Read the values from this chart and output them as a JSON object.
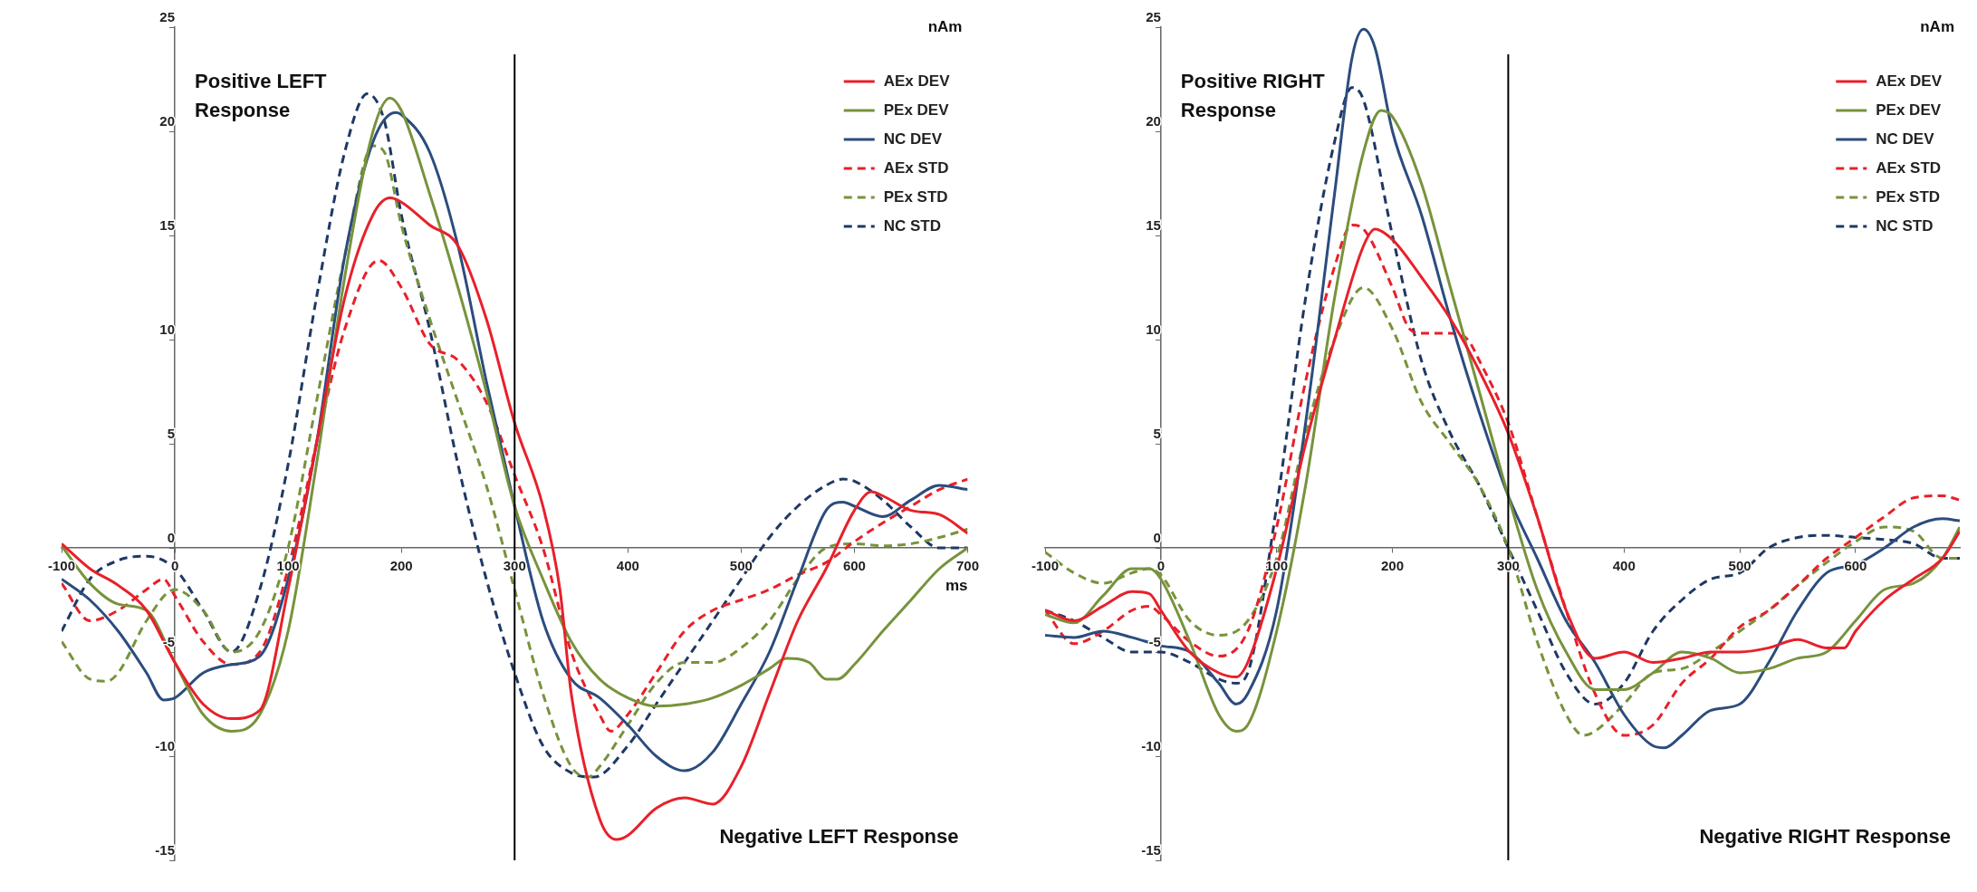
{
  "chart_data": [
    {
      "type": "line",
      "ylabel": "nAm",
      "xlabel": "ms",
      "xlim": [
        -100,
        700
      ],
      "xticks": [
        -100,
        0,
        100,
        200,
        300,
        400,
        500,
        600,
        700
      ],
      "ylim": [
        -15,
        25
      ],
      "yticks": [
        -15,
        -10,
        -5,
        0,
        5,
        10,
        15,
        20,
        25
      ],
      "grid": false,
      "legend": "top right",
      "marker": "none",
      "ref_lines": [
        {
          "axis": "x",
          "value": 300,
          "color": "#000000"
        }
      ],
      "annotations": [
        "Positive LEFT Response",
        "Negative LEFT Response"
      ],
      "series": [
        {
          "name": "AEx DEV",
          "color": "#e8202a",
          "line_style": "solid",
          "x": [
            -100,
            -75,
            -50,
            -25,
            0,
            25,
            50,
            75,
            100,
            125,
            150,
            175,
            190,
            200,
            225,
            250,
            275,
            300,
            325,
            340,
            350,
            375,
            390,
            400,
            425,
            450,
            475,
            500,
            525,
            550,
            575,
            600,
            615,
            625,
            650,
            675,
            700
          ],
          "values": [
            0.2,
            -1,
            -1.8,
            -3,
            -5.5,
            -7.5,
            -8.2,
            -7.8,
            -2,
            5,
            12,
            16,
            16.8,
            16.6,
            15.5,
            14.5,
            11,
            6,
            2,
            -2,
            -7,
            -13,
            -14,
            -13.8,
            -12.5,
            -12,
            -12.3,
            -10.5,
            -7,
            -3.5,
            -1,
            1.8,
            2.7,
            2.5,
            1.8,
            1.6,
            0.7
          ]
        },
        {
          "name": "PEx DEV",
          "color": "#77933c",
          "line_style": "solid",
          "x": [
            -100,
            -75,
            -50,
            -25,
            0,
            25,
            50,
            75,
            100,
            125,
            150,
            175,
            190,
            200,
            225,
            250,
            275,
            300,
            325,
            350,
            375,
            400,
            425,
            450,
            475,
            500,
            525,
            540,
            560,
            575,
            585,
            600,
            625,
            650,
            675,
            700
          ],
          "values": [
            0.1,
            -1.7,
            -2.7,
            -3,
            -5.5,
            -8,
            -8.8,
            -8,
            -4,
            4,
            13,
            20,
            21.6,
            21,
            17,
            12.5,
            7.5,
            2,
            -1.5,
            -4.5,
            -6.3,
            -7.2,
            -7.6,
            -7.5,
            -7.2,
            -6.6,
            -5.8,
            -5.3,
            -5.5,
            -6.3,
            -6.3,
            -5.6,
            -4,
            -2.5,
            -1,
            0
          ]
        },
        {
          "name": "NC DEV",
          "color": "#2b4c7e",
          "line_style": "solid",
          "x": [
            -100,
            -75,
            -50,
            -25,
            -10,
            0,
            25,
            50,
            75,
            100,
            125,
            150,
            175,
            195,
            200,
            225,
            250,
            275,
            300,
            325,
            350,
            375,
            400,
            425,
            450,
            475,
            500,
            525,
            550,
            575,
            590,
            600,
            625,
            650,
            675,
            700
          ],
          "values": [
            -1.5,
            -2.5,
            -4,
            -6,
            -7.3,
            -7.2,
            -6,
            -5.6,
            -5.2,
            -1.5,
            5,
            14,
            19.5,
            20.9,
            20.8,
            19,
            14.5,
            8,
            2,
            -3.5,
            -6.3,
            -7.2,
            -8.5,
            -10,
            -10.7,
            -9.8,
            -7.5,
            -5,
            -1.5,
            1.8,
            2.2,
            2,
            1.5,
            2.3,
            3,
            2.8
          ]
        },
        {
          "name": "AEx STD",
          "color": "#e8202a",
          "line_style": "dashed",
          "x": [
            -100,
            -75,
            -50,
            -25,
            -10,
            0,
            25,
            50,
            75,
            100,
            125,
            150,
            180,
            200,
            225,
            250,
            275,
            300,
            325,
            350,
            375,
            385,
            400,
            425,
            450,
            475,
            500,
            525,
            550,
            575,
            600,
            625,
            650,
            675,
            700
          ],
          "values": [
            -1.7,
            -3.5,
            -3,
            -2,
            -1.5,
            -2.3,
            -4.5,
            -5.6,
            -5,
            -1,
            5,
            10.5,
            13.8,
            12.5,
            9.8,
            9,
            7,
            3.5,
            0,
            -5,
            -8,
            -8.8,
            -8,
            -6,
            -4,
            -3,
            -2.5,
            -2,
            -1.3,
            -0.7,
            0.3,
            1.2,
            2,
            2.8,
            3.3
          ]
        },
        {
          "name": "PEx STD",
          "color": "#77933c",
          "line_style": "dashed",
          "x": [
            -100,
            -75,
            -60,
            -50,
            -25,
            0,
            25,
            50,
            75,
            100,
            125,
            150,
            175,
            185,
            200,
            225,
            250,
            275,
            300,
            325,
            350,
            365,
            375,
            400,
            425,
            450,
            475,
            500,
            525,
            550,
            575,
            600,
            625,
            650,
            675,
            700
          ],
          "values": [
            -4.5,
            -6.3,
            -6.4,
            -6,
            -3.5,
            -2,
            -3,
            -5,
            -4,
            0,
            7,
            14,
            19.3,
            19,
            15.5,
            11,
            7,
            3,
            -2,
            -7,
            -10.5,
            -11,
            -10.5,
            -8.5,
            -6.5,
            -5.5,
            -5.5,
            -4.8,
            -3.5,
            -1.5,
            0,
            0.2,
            0.1,
            0.2,
            0.5,
            0.9
          ]
        },
        {
          "name": "NC STD",
          "color": "#1f3864",
          "line_style": "dashed",
          "x": [
            -100,
            -75,
            -50,
            -25,
            0,
            25,
            50,
            75,
            100,
            125,
            150,
            170,
            185,
            200,
            225,
            250,
            275,
            300,
            325,
            350,
            370,
            400,
            425,
            450,
            475,
            500,
            525,
            550,
            575,
            590,
            600,
            625,
            650,
            675,
            700
          ],
          "values": [
            -4,
            -1.5,
            -0.6,
            -0.4,
            -1,
            -3,
            -5,
            -2,
            4,
            12,
            19,
            21.8,
            20.5,
            16,
            10.5,
            4,
            -1.5,
            -6,
            -9.5,
            -10.8,
            -11,
            -9.5,
            -7.5,
            -5.5,
            -3.5,
            -1.5,
            0.5,
            2,
            3,
            3.3,
            3.2,
            2.3,
            1,
            0,
            0
          ]
        }
      ]
    },
    {
      "type": "line",
      "ylabel": "nAm",
      "xlim": [
        -100,
        690
      ],
      "xticks": [
        -100,
        0,
        100,
        200,
        300,
        400,
        500,
        600
      ],
      "ylim": [
        -15,
        25
      ],
      "yticks": [
        -15,
        -10,
        -5,
        0,
        5,
        10,
        15,
        20,
        25
      ],
      "grid": false,
      "legend": "top right",
      "marker": "none",
      "ref_lines": [
        {
          "axis": "x",
          "value": 300,
          "color": "#000000"
        }
      ],
      "annotations": [
        "Positive RIGHT Response",
        "Negative RIGHT Response"
      ],
      "series": [
        {
          "name": "AEx DEV",
          "color": "#e8202a",
          "line_style": "solid",
          "x": [
            -100,
            -75,
            -50,
            -25,
            -10,
            0,
            25,
            50,
            65,
            75,
            100,
            125,
            150,
            175,
            185,
            200,
            225,
            250,
            275,
            300,
            325,
            350,
            375,
            400,
            425,
            450,
            475,
            500,
            525,
            550,
            575,
            590,
            600,
            625,
            650,
            675,
            690
          ],
          "values": [
            -3,
            -3.5,
            -2.8,
            -2.1,
            -2.2,
            -3,
            -5,
            -6,
            -6.2,
            -5.5,
            -1,
            5,
            10,
            14.5,
            15.3,
            14.8,
            13,
            11,
            8.5,
            5.5,
            1.5,
            -3,
            -5.3,
            -5,
            -5.5,
            -5.3,
            -5,
            -5,
            -4.8,
            -4.4,
            -4.8,
            -4.8,
            -4,
            -2.5,
            -1.5,
            -0.5,
            0.8
          ]
        },
        {
          "name": "PEx DEV",
          "color": "#77933c",
          "line_style": "solid",
          "x": [
            -100,
            -75,
            -50,
            -25,
            -10,
            0,
            25,
            50,
            65,
            75,
            100,
            125,
            150,
            175,
            190,
            200,
            225,
            250,
            275,
            300,
            325,
            350,
            375,
            400,
            425,
            450,
            475,
            500,
            525,
            550,
            575,
            600,
            625,
            650,
            675,
            690
          ],
          "values": [
            -3.2,
            -3.6,
            -2.3,
            -1,
            -1,
            -1.5,
            -4.5,
            -8,
            -8.8,
            -8.5,
            -4,
            3,
            12,
            19,
            21,
            20.7,
            17.5,
            12.5,
            7.5,
            2.5,
            -2,
            -5,
            -6.8,
            -6.8,
            -6,
            -5,
            -5.3,
            -6,
            -5.8,
            -5.3,
            -5,
            -3.5,
            -2,
            -1.7,
            -0.5,
            1
          ]
        },
        {
          "name": "NC DEV",
          "color": "#2b4c7e",
          "line_style": "solid",
          "x": [
            -100,
            -75,
            -50,
            -25,
            0,
            25,
            50,
            65,
            75,
            100,
            125,
            150,
            165,
            175,
            185,
            200,
            225,
            250,
            275,
            300,
            325,
            350,
            375,
            400,
            425,
            435,
            450,
            475,
            500,
            525,
            550,
            575,
            600,
            625,
            650,
            675,
            690
          ],
          "values": [
            -4.2,
            -4.3,
            -4,
            -4.3,
            -4.7,
            -5,
            -6.5,
            -7.5,
            -7,
            -3,
            6,
            17,
            23.5,
            24.9,
            24,
            20,
            16,
            11,
            6.5,
            2.5,
            -0.5,
            -3.5,
            -5.5,
            -8,
            -9.5,
            -9.6,
            -9,
            -7.8,
            -7.5,
            -5.5,
            -3,
            -1.2,
            -0.8,
            0,
            1,
            1.4,
            1.3
          ]
        },
        {
          "name": "AEx STD",
          "color": "#e8202a",
          "line_style": "dashed",
          "x": [
            -100,
            -75,
            -50,
            -25,
            -10,
            0,
            25,
            50,
            75,
            100,
            125,
            150,
            165,
            175,
            200,
            215,
            225,
            250,
            265,
            275,
            300,
            325,
            350,
            375,
            400,
            425,
            450,
            475,
            500,
            525,
            550,
            575,
            600,
            625,
            650,
            675,
            690
          ],
          "values": [
            -3,
            -4.6,
            -4,
            -3,
            -2.8,
            -3.2,
            -4.5,
            -5.2,
            -4,
            1,
            8,
            13.5,
            15.5,
            15.3,
            12.5,
            10.5,
            10.3,
            10.3,
            10,
            9,
            6,
            1.5,
            -3,
            -7,
            -9,
            -8.5,
            -6.5,
            -5.3,
            -3.8,
            -3,
            -1.8,
            -0.5,
            0.5,
            1.5,
            2.4,
            2.5,
            2.3
          ]
        },
        {
          "name": "PEx STD",
          "color": "#77933c",
          "line_style": "dashed",
          "x": [
            -100,
            -75,
            -50,
            -25,
            -10,
            0,
            25,
            50,
            75,
            100,
            125,
            150,
            175,
            200,
            225,
            250,
            275,
            300,
            325,
            350,
            365,
            375,
            400,
            425,
            450,
            475,
            500,
            525,
            550,
            575,
            600,
            625,
            650,
            675,
            690
          ],
          "values": [
            -0.2,
            -1.2,
            -1.7,
            -1.2,
            -1,
            -1.3,
            -3.5,
            -4.2,
            -3.5,
            -0.5,
            5.5,
            10,
            12.5,
            10.5,
            7,
            5,
            3,
            0,
            -4.5,
            -8,
            -9,
            -8.8,
            -7.5,
            -6,
            -5.8,
            -5,
            -4,
            -3,
            -1.8,
            -0.7,
            0.3,
            1,
            0.8,
            -0.5,
            -0.5
          ]
        },
        {
          "name": "NC STD",
          "color": "#1f3864",
          "line_style": "dashed",
          "x": [
            -100,
            -75,
            -50,
            -25,
            0,
            25,
            50,
            65,
            75,
            100,
            125,
            150,
            165,
            175,
            200,
            225,
            250,
            275,
            300,
            325,
            350,
            375,
            400,
            425,
            450,
            475,
            500,
            525,
            550,
            575,
            600,
            625,
            650,
            675,
            690
          ],
          "values": [
            -3,
            -3.5,
            -4.3,
            -5,
            -5,
            -5.5,
            -6.3,
            -6.5,
            -6,
            2,
            12,
            19.5,
            22.1,
            21.5,
            15,
            9,
            5.5,
            3,
            0,
            -3,
            -6,
            -7.5,
            -6.5,
            -4,
            -2.5,
            -1.5,
            -1.2,
            0,
            0.5,
            0.6,
            0.5,
            0.4,
            0.2,
            -0.5,
            -0.5
          ]
        }
      ]
    }
  ]
}
